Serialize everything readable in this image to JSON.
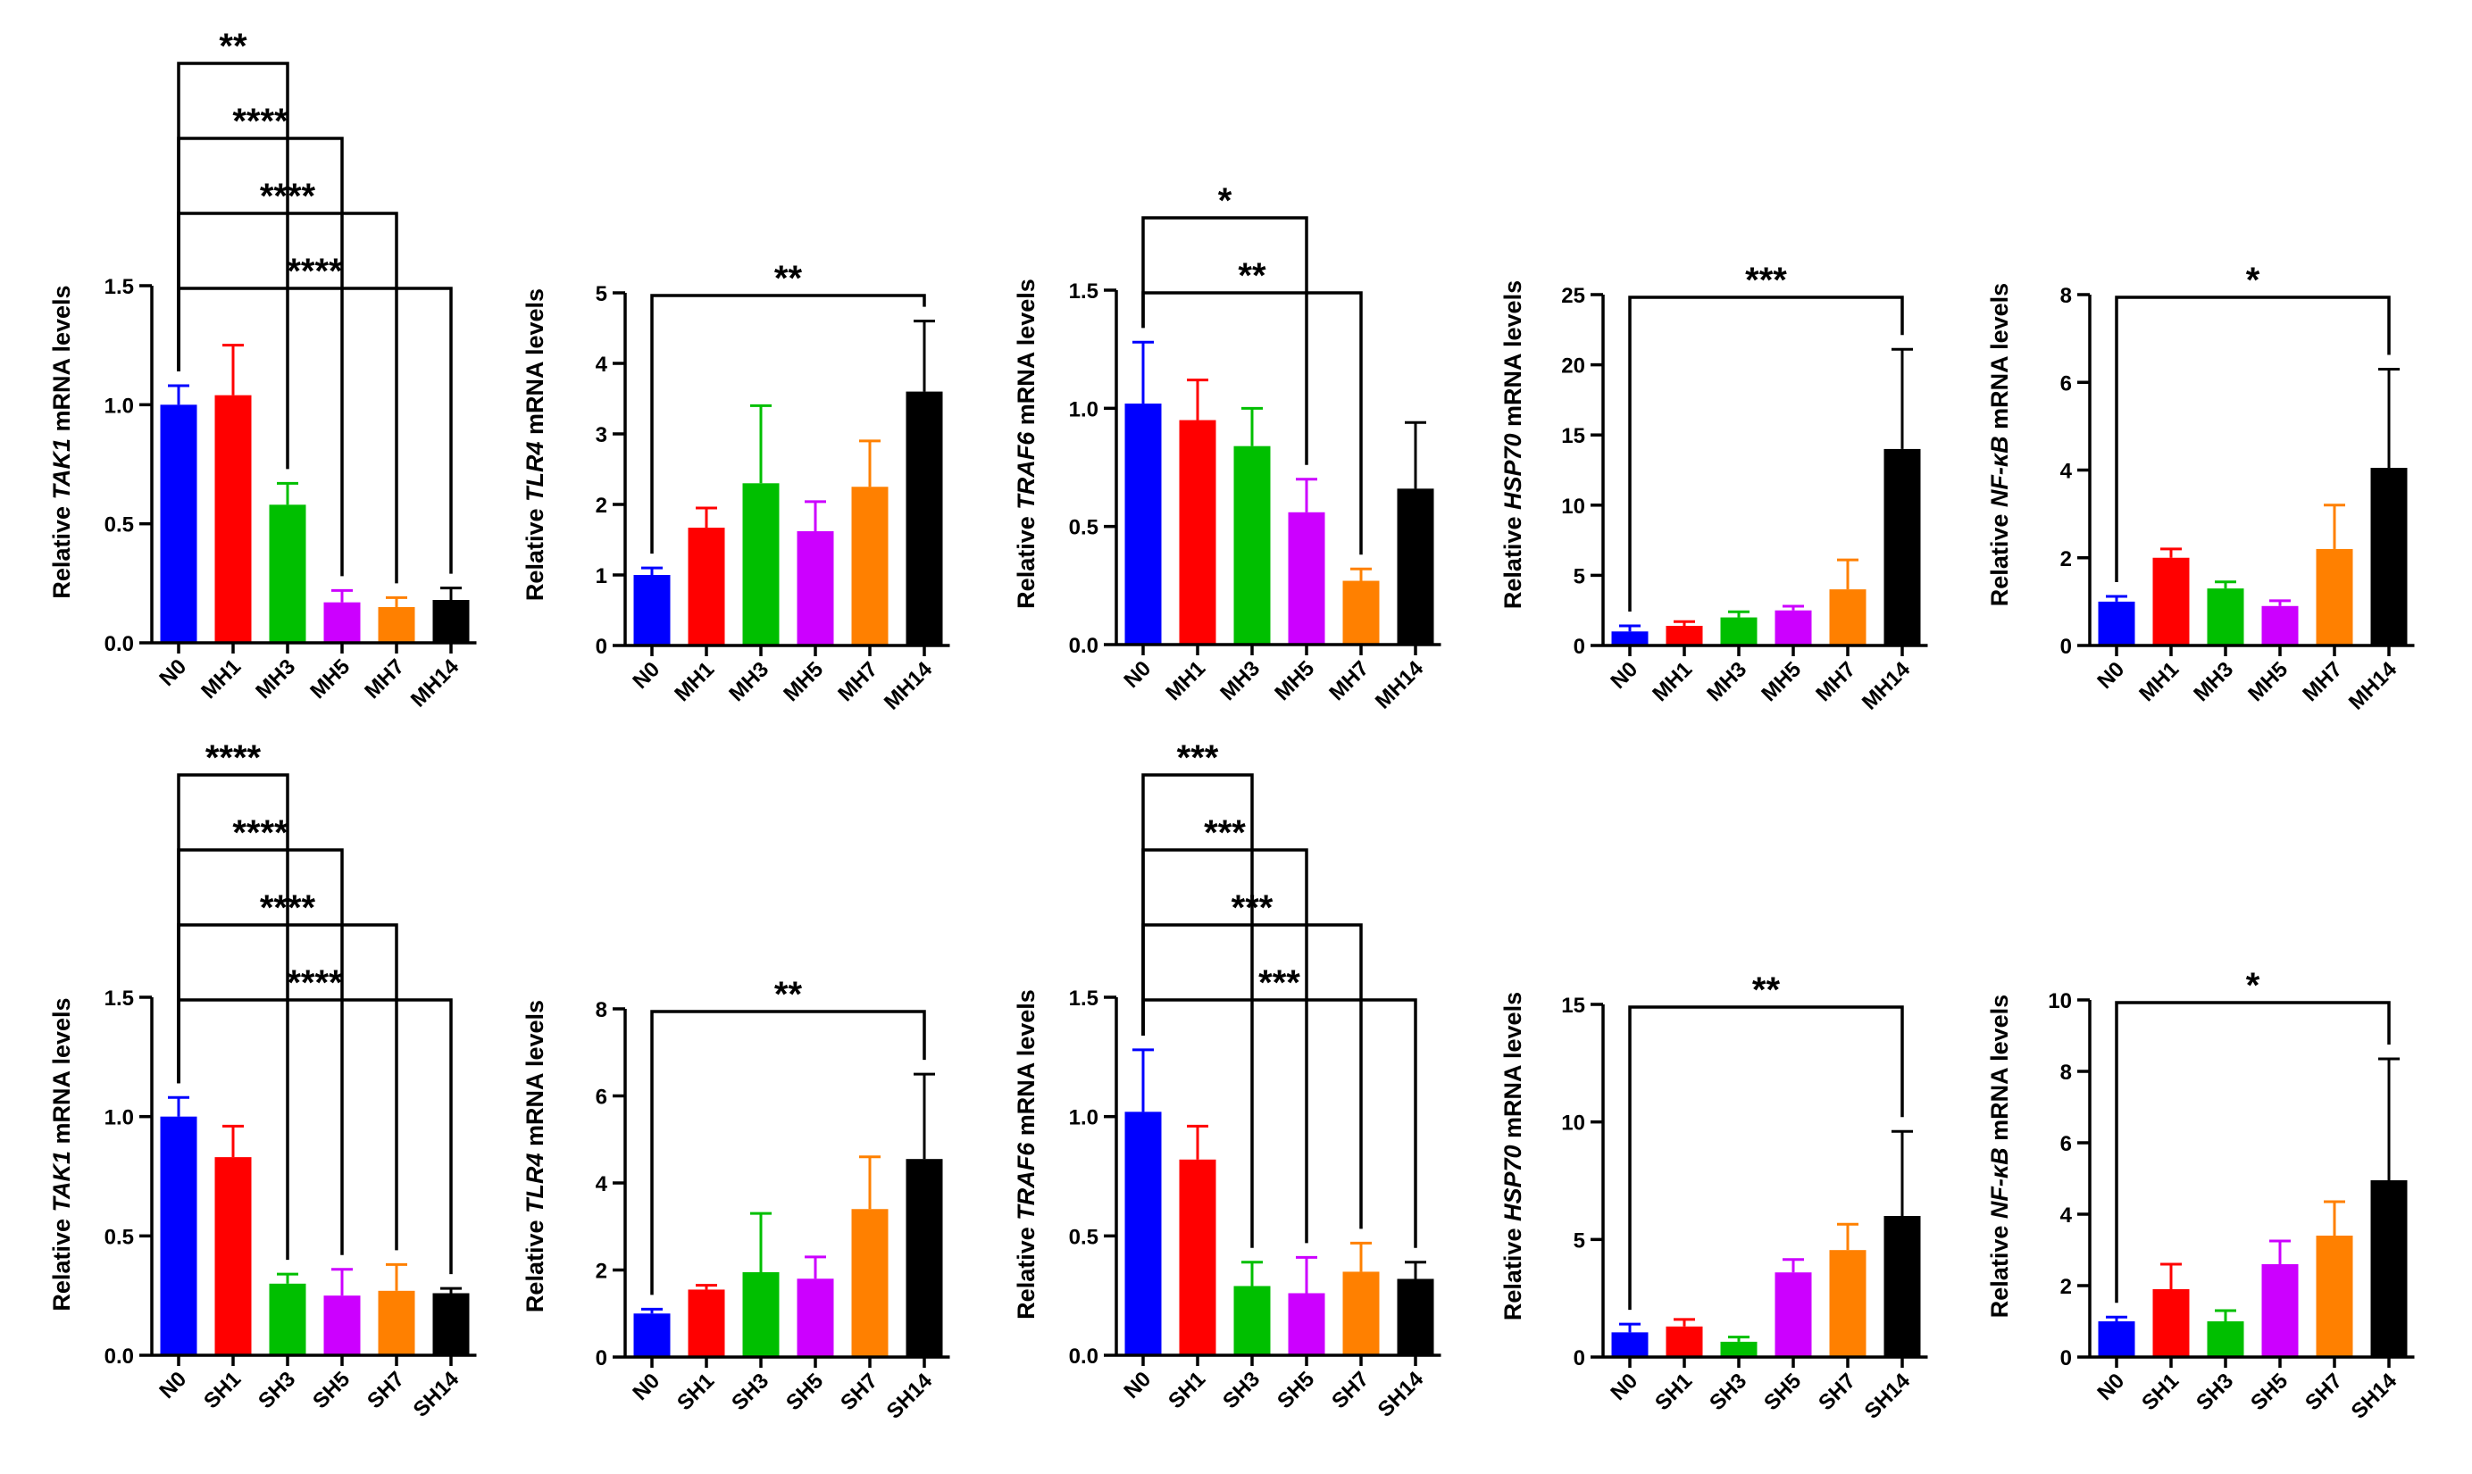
{
  "chart_data": [
    {
      "type": "bar",
      "gene": "TAK1",
      "ylabel_prefix": "Relative ",
      "ylabel_suffix": " mRNA levels",
      "categories": [
        "N0",
        "MH1",
        "MH3",
        "MH5",
        "MH7",
        "MH14"
      ],
      "values": [
        1.0,
        1.04,
        0.58,
        0.17,
        0.15,
        0.18
      ],
      "errors": [
        0.08,
        0.21,
        0.09,
        0.05,
        0.04,
        0.05
      ],
      "ylim": [
        0,
        1.5
      ],
      "yticks": [
        "0.0",
        "0.5",
        "1.0",
        "1.5"
      ],
      "comparisons": [
        {
          "to": "MH3",
          "label": "**"
        },
        {
          "to": "MH5",
          "label": "****"
        },
        {
          "to": "MH7",
          "label": "****"
        },
        {
          "to": "MH14",
          "label": "****"
        }
      ]
    },
    {
      "type": "bar",
      "gene": "TLR4",
      "ylabel_prefix": "Relative ",
      "ylabel_suffix": " mRNA levels",
      "categories": [
        "N0",
        "MH1",
        "MH3",
        "MH5",
        "MH7",
        "MH14"
      ],
      "values": [
        1.0,
        1.67,
        2.3,
        1.62,
        2.25,
        3.6
      ],
      "errors": [
        0.1,
        0.28,
        1.1,
        0.42,
        0.65,
        1.0
      ],
      "ylim": [
        0,
        5
      ],
      "yticks": [
        "0",
        "1",
        "2",
        "3",
        "4",
        "5"
      ],
      "comparisons": [
        {
          "to": "MH14",
          "label": "**"
        }
      ]
    },
    {
      "type": "bar",
      "gene": "TRAF6",
      "ylabel_prefix": "Relative ",
      "ylabel_suffix": " mRNA levels",
      "categories": [
        "N0",
        "MH1",
        "MH3",
        "MH5",
        "MH7",
        "MH14"
      ],
      "values": [
        1.02,
        0.95,
        0.84,
        0.56,
        0.27,
        0.66
      ],
      "errors": [
        0.26,
        0.17,
        0.16,
        0.14,
        0.05,
        0.28
      ],
      "ylim": [
        0,
        1.5
      ],
      "yticks": [
        "0.0",
        "0.5",
        "1.0",
        "1.5"
      ],
      "comparisons": [
        {
          "to": "MH5",
          "label": "*"
        },
        {
          "to": "MH7",
          "label": "**"
        }
      ]
    },
    {
      "type": "bar",
      "gene": "HSP70",
      "ylabel_prefix": "Relative ",
      "ylabel_suffix": " mRNA levels",
      "categories": [
        "N0",
        "MH1",
        "MH3",
        "MH5",
        "MH7",
        "MH14"
      ],
      "values": [
        1.0,
        1.4,
        2.0,
        2.5,
        4.0,
        14.0
      ],
      "errors": [
        0.4,
        0.3,
        0.4,
        0.3,
        2.1,
        7.1
      ],
      "ylim": [
        0,
        25
      ],
      "yticks": [
        "0",
        "5",
        "10",
        "15",
        "20",
        "25"
      ],
      "comparisons": [
        {
          "to": "MH14",
          "label": "***"
        }
      ]
    },
    {
      "type": "bar",
      "gene": "NF-κB",
      "ylabel_prefix": "Relative ",
      "ylabel_suffix": " mRNA levels",
      "categories": [
        "N0",
        "MH1",
        "MH3",
        "MH5",
        "MH7",
        "MH14"
      ],
      "values": [
        1.0,
        2.0,
        1.3,
        0.9,
        2.2,
        4.05
      ],
      "errors": [
        0.12,
        0.2,
        0.15,
        0.12,
        1.0,
        2.25
      ],
      "ylim": [
        0,
        8
      ],
      "yticks": [
        "0",
        "2",
        "4",
        "6",
        "8"
      ],
      "comparisons": [
        {
          "to": "MH14",
          "label": "*"
        }
      ]
    },
    {
      "type": "bar",
      "gene": "TAK1",
      "ylabel_prefix": "Relative ",
      "ylabel_suffix": " mRNA levels",
      "categories": [
        "N0",
        "SH1",
        "SH3",
        "SH5",
        "SH7",
        "SH14"
      ],
      "values": [
        1.0,
        0.83,
        0.3,
        0.25,
        0.27,
        0.26
      ],
      "errors": [
        0.08,
        0.13,
        0.04,
        0.11,
        0.11,
        0.02
      ],
      "ylim": [
        0,
        1.5
      ],
      "yticks": [
        "0.0",
        "0.5",
        "1.0",
        "1.5"
      ],
      "comparisons": [
        {
          "to": "SH3",
          "label": "****"
        },
        {
          "to": "SH5",
          "label": "****"
        },
        {
          "to": "SH7",
          "label": "****"
        },
        {
          "to": "SH14",
          "label": "****"
        }
      ]
    },
    {
      "type": "bar",
      "gene": "TLR4",
      "ylabel_prefix": "Relative ",
      "ylabel_suffix": " mRNA levels",
      "categories": [
        "N0",
        "SH1",
        "SH3",
        "SH5",
        "SH7",
        "SH14"
      ],
      "values": [
        1.0,
        1.55,
        1.95,
        1.8,
        3.4,
        4.55
      ],
      "errors": [
        0.1,
        0.1,
        1.35,
        0.5,
        1.2,
        1.95
      ],
      "ylim": [
        0,
        8
      ],
      "yticks": [
        "0",
        "2",
        "4",
        "6",
        "8"
      ],
      "comparisons": [
        {
          "to": "SH14",
          "label": "**"
        }
      ]
    },
    {
      "type": "bar",
      "gene": "TRAF6",
      "ylabel_prefix": "Relative ",
      "ylabel_suffix": " mRNA levels",
      "categories": [
        "N0",
        "SH1",
        "SH3",
        "SH5",
        "SH7",
        "SH14"
      ],
      "values": [
        1.02,
        0.82,
        0.29,
        0.26,
        0.35,
        0.32
      ],
      "errors": [
        0.26,
        0.14,
        0.1,
        0.15,
        0.12,
        0.07
      ],
      "ylim": [
        0,
        1.5
      ],
      "yticks": [
        "0.0",
        "0.5",
        "1.0",
        "1.5"
      ],
      "comparisons": [
        {
          "to": "SH3",
          "label": "***"
        },
        {
          "to": "SH5",
          "label": "***"
        },
        {
          "to": "SH7",
          "label": "***"
        },
        {
          "to": "SH14",
          "label": "***"
        }
      ]
    },
    {
      "type": "bar",
      "gene": "HSP70",
      "ylabel_prefix": "Relative ",
      "ylabel_suffix": " mRNA levels",
      "categories": [
        "N0",
        "SH1",
        "SH3",
        "SH5",
        "SH7",
        "SH14"
      ],
      "values": [
        1.05,
        1.3,
        0.65,
        3.6,
        4.55,
        6.0
      ],
      "errors": [
        0.35,
        0.3,
        0.2,
        0.55,
        1.1,
        3.6
      ],
      "ylim": [
        0,
        15
      ],
      "yticks": [
        "0",
        "5",
        "10",
        "15"
      ],
      "comparisons": [
        {
          "to": "SH14",
          "label": "**"
        }
      ]
    },
    {
      "type": "bar",
      "gene": "NF-κB",
      "ylabel_prefix": "Relative ",
      "ylabel_suffix": " mRNA levels",
      "categories": [
        "N0",
        "SH1",
        "SH3",
        "SH5",
        "SH7",
        "SH14"
      ],
      "values": [
        1.0,
        1.9,
        1.0,
        2.6,
        3.4,
        4.95
      ],
      "errors": [
        0.12,
        0.7,
        0.3,
        0.65,
        0.95,
        3.4
      ],
      "ylim": [
        0,
        10
      ],
      "yticks": [
        "0",
        "2",
        "4",
        "6",
        "8",
        "10"
      ],
      "comparisons": [
        {
          "to": "SH14",
          "label": "*"
        }
      ]
    }
  ],
  "colors": [
    "#0000ff",
    "#ff0000",
    "#00bf00",
    "#cc00ff",
    "#ff8000",
    "#000000"
  ]
}
